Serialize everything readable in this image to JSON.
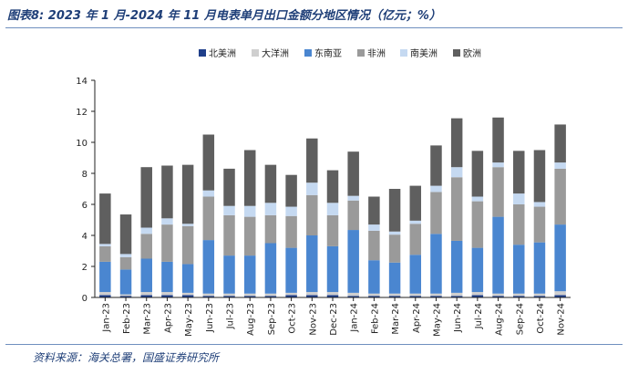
{
  "title": "图表8:  2023 年 1 月-2024 年 11 月电表单月出口金额分地区情况（亿元；%）",
  "source": "资料来源：海关总署，国盛证券研究所",
  "colors": {
    "北美洲": "#1f3f8a",
    "大洋洲": "#cfcfcf",
    "东南亚": "#4a86d0",
    "非洲": "#9a9a9a",
    "南美洲": "#c5d9f1",
    "欧洲": "#5f5f5f"
  },
  "chart_data": {
    "type": "bar",
    "stacked": true,
    "categories": [
      "Jan-23",
      "Feb-23",
      "Mar-23",
      "Apr-23",
      "May-23",
      "Jun-23",
      "Jul-23",
      "Aug-23",
      "Sep-23",
      "Oct-23",
      "Nov-23",
      "Dec-23",
      "Jan-24",
      "Feb-24",
      "Mar-24",
      "Apr-24",
      "May-24",
      "Jun-24",
      "Jul-24",
      "Aug-24",
      "Sep-24",
      "Oct-24",
      "Nov-24"
    ],
    "series": [
      {
        "name": "北美洲",
        "values": [
          0.15,
          0.1,
          0.15,
          0.15,
          0.15,
          0.1,
          0.1,
          0.1,
          0.1,
          0.15,
          0.15,
          0.15,
          0.1,
          0.1,
          0.1,
          0.1,
          0.1,
          0.1,
          0.15,
          0.1,
          0.1,
          0.1,
          0.15
        ]
      },
      {
        "name": "大洋洲",
        "values": [
          0.2,
          0.1,
          0.2,
          0.2,
          0.15,
          0.15,
          0.15,
          0.15,
          0.15,
          0.15,
          0.2,
          0.2,
          0.2,
          0.15,
          0.15,
          0.15,
          0.15,
          0.2,
          0.2,
          0.15,
          0.15,
          0.15,
          0.25
        ]
      },
      {
        "name": "东南亚",
        "values": [
          1.95,
          1.6,
          2.15,
          1.95,
          1.85,
          3.45,
          2.45,
          2.45,
          3.25,
          2.9,
          3.65,
          2.95,
          4.05,
          2.15,
          2.0,
          2.5,
          3.85,
          3.35,
          2.85,
          4.95,
          3.15,
          3.3,
          4.3
        ]
      },
      {
        "name": "非洲",
        "values": [
          1.0,
          0.8,
          1.6,
          2.4,
          2.45,
          2.8,
          2.6,
          2.5,
          1.8,
          2.05,
          2.6,
          2.0,
          1.9,
          1.9,
          1.8,
          2.0,
          2.7,
          4.1,
          3.0,
          3.2,
          2.6,
          2.3,
          3.6
        ]
      },
      {
        "name": "南美洲",
        "values": [
          0.15,
          0.2,
          0.4,
          0.4,
          0.15,
          0.4,
          0.6,
          0.7,
          0.8,
          0.6,
          0.8,
          0.8,
          0.3,
          0.4,
          0.2,
          0.2,
          0.4,
          0.65,
          0.3,
          0.3,
          0.7,
          0.3,
          0.4
        ]
      },
      {
        "name": "欧洲",
        "values": [
          3.25,
          2.55,
          3.9,
          3.4,
          3.8,
          3.6,
          2.4,
          3.6,
          2.45,
          2.05,
          2.85,
          2.1,
          2.85,
          1.8,
          2.75,
          2.25,
          2.6,
          3.15,
          2.95,
          2.9,
          2.75,
          3.35,
          2.45
        ]
      }
    ],
    "ylim": [
      0,
      14
    ],
    "yticks": [
      0,
      2,
      4,
      6,
      8,
      10,
      12,
      14
    ],
    "legend": "top-center",
    "grid": false
  }
}
